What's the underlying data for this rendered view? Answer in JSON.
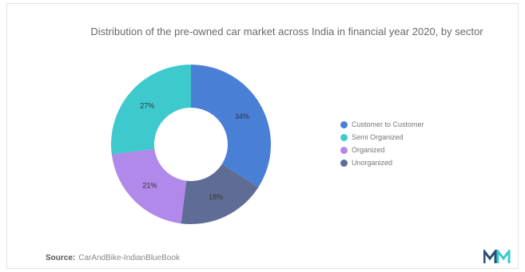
{
  "chart_data": {
    "type": "pie",
    "title": "Distribution of the pre-owned car market across India in financial year 2020, by sector",
    "series": [
      {
        "name": "Customer to Customer",
        "value": 34,
        "label": "34%",
        "color": "#4a7fd6"
      },
      {
        "name": "Unorganized",
        "value": 18,
        "label": "18%",
        "color": "#5f6d96"
      },
      {
        "name": "Organized",
        "value": 21,
        "label": "21%",
        "color": "#b089ea"
      },
      {
        "name": "Semi Organized",
        "value": 27,
        "label": "27%",
        "color": "#3ec9cc"
      }
    ],
    "legend": [
      {
        "name": "Customer to Customer",
        "color": "#4a7fd6"
      },
      {
        "name": "Semi Organized",
        "color": "#3ec9cc"
      },
      {
        "name": "Organized",
        "color": "#b089ea"
      },
      {
        "name": "Unorganized",
        "color": "#5f6d96"
      }
    ],
    "legend_position": "right",
    "hole": "donut"
  },
  "source": {
    "label": "Source:",
    "text": "CarAndBike-IndianBlueBook"
  },
  "logo": {
    "icon": "mordor-intelligence-logo",
    "colors": [
      "#2a4f7a",
      "#3ec9cc"
    ]
  }
}
